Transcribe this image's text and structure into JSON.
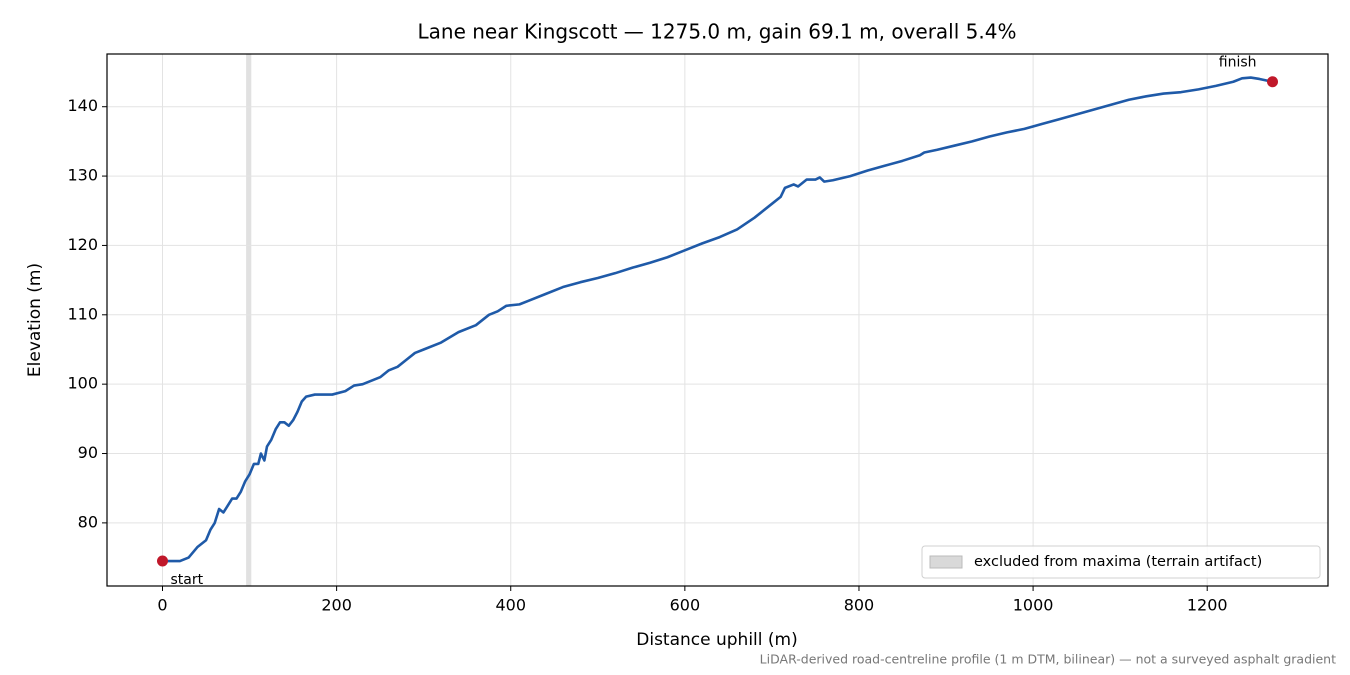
{
  "chart_data": {
    "type": "line",
    "title": "Lane near Kingscott — 1275.0 m, gain 69.1 m, overall 5.4%",
    "xlabel": "Distance uphill (m)",
    "ylabel": "Elevation (m)",
    "note": "LiDAR-derived road-centreline profile (1 m DTM, bilinear) — not a surveyed asphalt gradient",
    "color": "#1f5aa8",
    "x": [
      0,
      10,
      20,
      30,
      40,
      50,
      55,
      60,
      65,
      70,
      75,
      80,
      85,
      90,
      95,
      100,
      105,
      110,
      113,
      117,
      120,
      125,
      130,
      135,
      140,
      145,
      150,
      155,
      160,
      165,
      175,
      185,
      195,
      210,
      220,
      230,
      240,
      250,
      260,
      270,
      280,
      290,
      300,
      320,
      340,
      360,
      375,
      385,
      395,
      410,
      420,
      440,
      460,
      480,
      500,
      520,
      540,
      560,
      580,
      600,
      620,
      640,
      660,
      680,
      700,
      710,
      715,
      725,
      730,
      740,
      750,
      755,
      760,
      770,
      790,
      810,
      830,
      850,
      870,
      875,
      890,
      910,
      930,
      950,
      970,
      990,
      1010,
      1030,
      1050,
      1070,
      1090,
      1110,
      1130,
      1150,
      1170,
      1190,
      1210,
      1230,
      1240,
      1250,
      1260,
      1275
    ],
    "values": [
      74.5,
      74.5,
      74.5,
      75.0,
      76.5,
      77.5,
      79,
      80,
      82,
      81.5,
      82.5,
      83.5,
      83.5,
      84.5,
      86,
      87,
      88.5,
      88.5,
      90,
      89,
      91,
      92,
      93.5,
      94.5,
      94.5,
      94,
      94.8,
      96,
      97.5,
      98.2,
      98.5,
      98.5,
      98.5,
      99,
      99.8,
      100,
      100.5,
      101,
      102,
      102.5,
      103.5,
      104.5,
      105,
      106,
      107.5,
      108.5,
      110,
      110.5,
      111.3,
      111.5,
      112,
      113,
      114,
      114.7,
      115.3,
      116,
      116.8,
      117.5,
      118.3,
      119.3,
      120.3,
      121.2,
      122.3,
      124,
      126,
      127,
      128.3,
      128.8,
      128.5,
      129.5,
      129.5,
      129.8,
      129.2,
      129.4,
      130,
      130.8,
      131.5,
      132.2,
      133,
      133.4,
      133.8,
      134.4,
      135,
      135.7,
      136.3,
      136.8,
      137.5,
      138.2,
      138.9,
      139.6,
      140.3,
      141,
      141.5,
      141.9,
      142.1,
      142.5,
      143,
      143.6,
      144.1,
      144.2,
      144,
      143.6
    ],
    "annotations": [
      {
        "text": "start",
        "x": 0,
        "y": 74.5,
        "color": "#c0182a"
      },
      {
        "text": "finish",
        "x": 1275,
        "y": 143.6,
        "color": "#c0182a"
      }
    ],
    "shaded_span": {
      "xlim": [
        96,
        102
      ],
      "label": "excluded from maxima (terrain artifact)",
      "color": "#d9d9d9"
    },
    "xlim": [
      -63.75,
      1338.75
    ],
    "ylim": [
      70.9,
      147.6
    ],
    "xticks": [
      0,
      200,
      400,
      600,
      800,
      1000,
      1200
    ],
    "yticks": [
      80,
      90,
      100,
      110,
      120,
      130,
      140
    ],
    "grid": true,
    "legend": "lower right"
  }
}
